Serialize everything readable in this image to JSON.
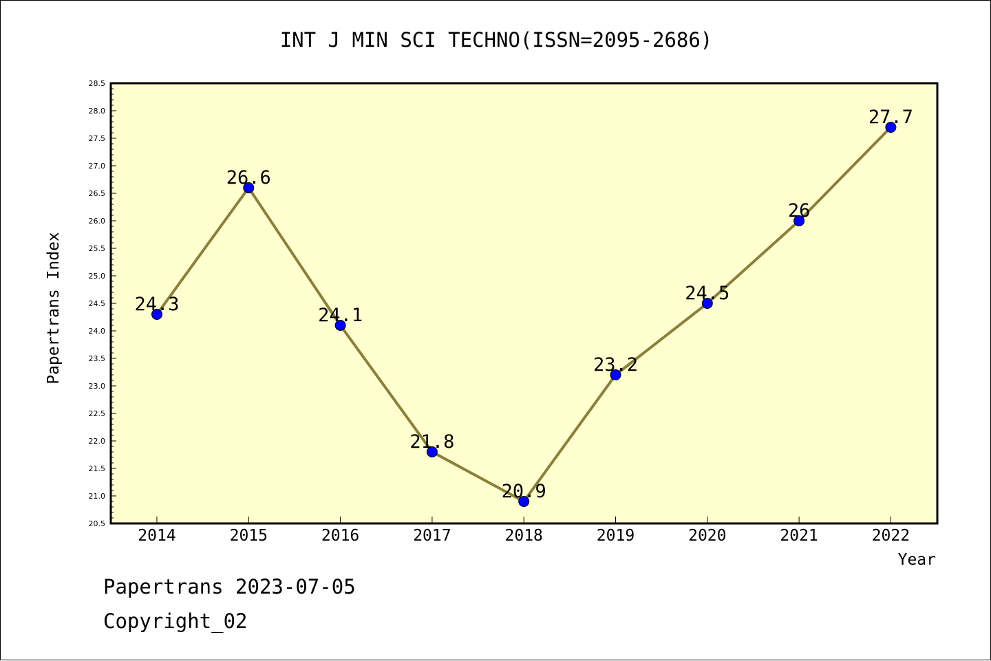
{
  "chart_data": {
    "type": "line",
    "title": "INT J MIN SCI TECHNO(ISSN=2095-2686)",
    "xlabel": "Year",
    "ylabel": "Papertrans Index",
    "categories": [
      "2014",
      "2015",
      "2016",
      "2017",
      "2018",
      "2019",
      "2020",
      "2021",
      "2022"
    ],
    "values": [
      24.3,
      26.6,
      24.1,
      21.8,
      20.9,
      23.2,
      24.5,
      26,
      27.7
    ],
    "data_labels": [
      "24.3",
      "26.6",
      "24.1",
      "21.8",
      "20.9",
      "23.2",
      "24.5",
      "26",
      "27.7"
    ],
    "ylim": [
      20.5,
      28.5
    ],
    "yticks": [
      "20.5",
      "21.0",
      "21.5",
      "22.0",
      "22.5",
      "23.0",
      "23.5",
      "24.0",
      "24.5",
      "25.0",
      "25.5",
      "26.0",
      "26.5",
      "27.0",
      "27.5",
      "28.0",
      "28.5"
    ],
    "grid": false,
    "legend": "none",
    "colors": {
      "plot_background": "#ffffd0",
      "line": "#8b803a",
      "marker": "#0000ff",
      "text": "#000000"
    }
  },
  "footer": {
    "source_line": "Papertrans 2023-07-05",
    "copyright_line": "Copyright_02"
  }
}
